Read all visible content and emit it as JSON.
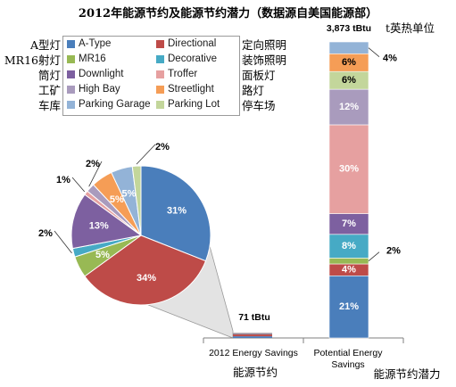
{
  "title": "2012年能源节约及能源节约潜力（数据源自美国能源部）",
  "legend": {
    "left_labels_cn": [
      "A型灯",
      "MR16射灯",
      "筒灯",
      "工矿",
      "车库"
    ],
    "right_labels_cn": [
      "定向照明",
      "装饰照明",
      "面板灯",
      "路灯",
      "停车场"
    ]
  },
  "bar_annotations": {
    "total_label": "3,873 tBtu",
    "unit_cn": "t英热单位",
    "savings_total_label": "71 tBtu"
  },
  "x_axis": {
    "labels": [
      "2012 Energy Savings",
      "Potential Energy\nSavings"
    ],
    "labels_cn": [
      "能源节约",
      "能源节约潜力"
    ]
  },
  "chart_data": [
    {
      "type": "pie",
      "title": "",
      "slices": [
        {
          "label": "A-Type",
          "value": 31,
          "color": "#4a7ebb"
        },
        {
          "label": "Directional",
          "value": 34,
          "color": "#be4b48"
        },
        {
          "label": "MR16",
          "value": 5,
          "color": "#98b954"
        },
        {
          "label": "Decorative",
          "value": 2,
          "color": "#46aac5"
        },
        {
          "label": "Downlight",
          "value": 13,
          "color": "#7d60a0"
        },
        {
          "label": "Troffer",
          "value": 1,
          "color": "#e6a0a0"
        },
        {
          "label": "High Bay",
          "value": 2,
          "color": "#a99bbd"
        },
        {
          "label": "Streetlight",
          "value": 5,
          "color": "#f59d56"
        },
        {
          "label": "Parking Garage",
          "value": 5,
          "color": "#93b3d7"
        },
        {
          "label": "Parking Lot",
          "value": 2,
          "color": "#c3d69b"
        }
      ]
    },
    {
      "type": "bar",
      "stacked": true,
      "categories": [
        "2012 Energy Savings",
        "Potential Energy Savings"
      ],
      "totals_tBtu": [
        71,
        3873
      ],
      "series": [
        {
          "name": "A-Type",
          "color": "#4a7ebb",
          "values": [
            31,
            21
          ]
        },
        {
          "name": "Directional",
          "color": "#be4b48",
          "values": [
            34,
            4
          ]
        },
        {
          "name": "MR16",
          "color": "#98b954",
          "values": [
            5,
            2
          ]
        },
        {
          "name": "Decorative",
          "color": "#46aac5",
          "values": [
            2,
            8
          ]
        },
        {
          "name": "Downlight",
          "color": "#7d60a0",
          "values": [
            13,
            7
          ]
        },
        {
          "name": "Troffer",
          "color": "#e6a0a0",
          "values": [
            1,
            30
          ]
        },
        {
          "name": "High Bay",
          "color": "#a99bbd",
          "values": [
            2,
            12
          ]
        },
        {
          "name": "Parking Lot",
          "color": "#c3d69b",
          "values": [
            2,
            6
          ]
        },
        {
          "name": "Streetlight",
          "color": "#f59d56",
          "values": [
            5,
            6
          ]
        },
        {
          "name": "Parking Garage",
          "color": "#93b3d7",
          "values": [
            5,
            4
          ]
        }
      ],
      "data_labels": {
        "Potential Energy Savings": [
          "21%",
          "4%",
          "2%",
          "8%",
          "7%",
          "30%",
          "12%",
          "6%",
          "6%",
          "4%"
        ]
      },
      "grid": false,
      "legend_position": "top-left"
    }
  ]
}
